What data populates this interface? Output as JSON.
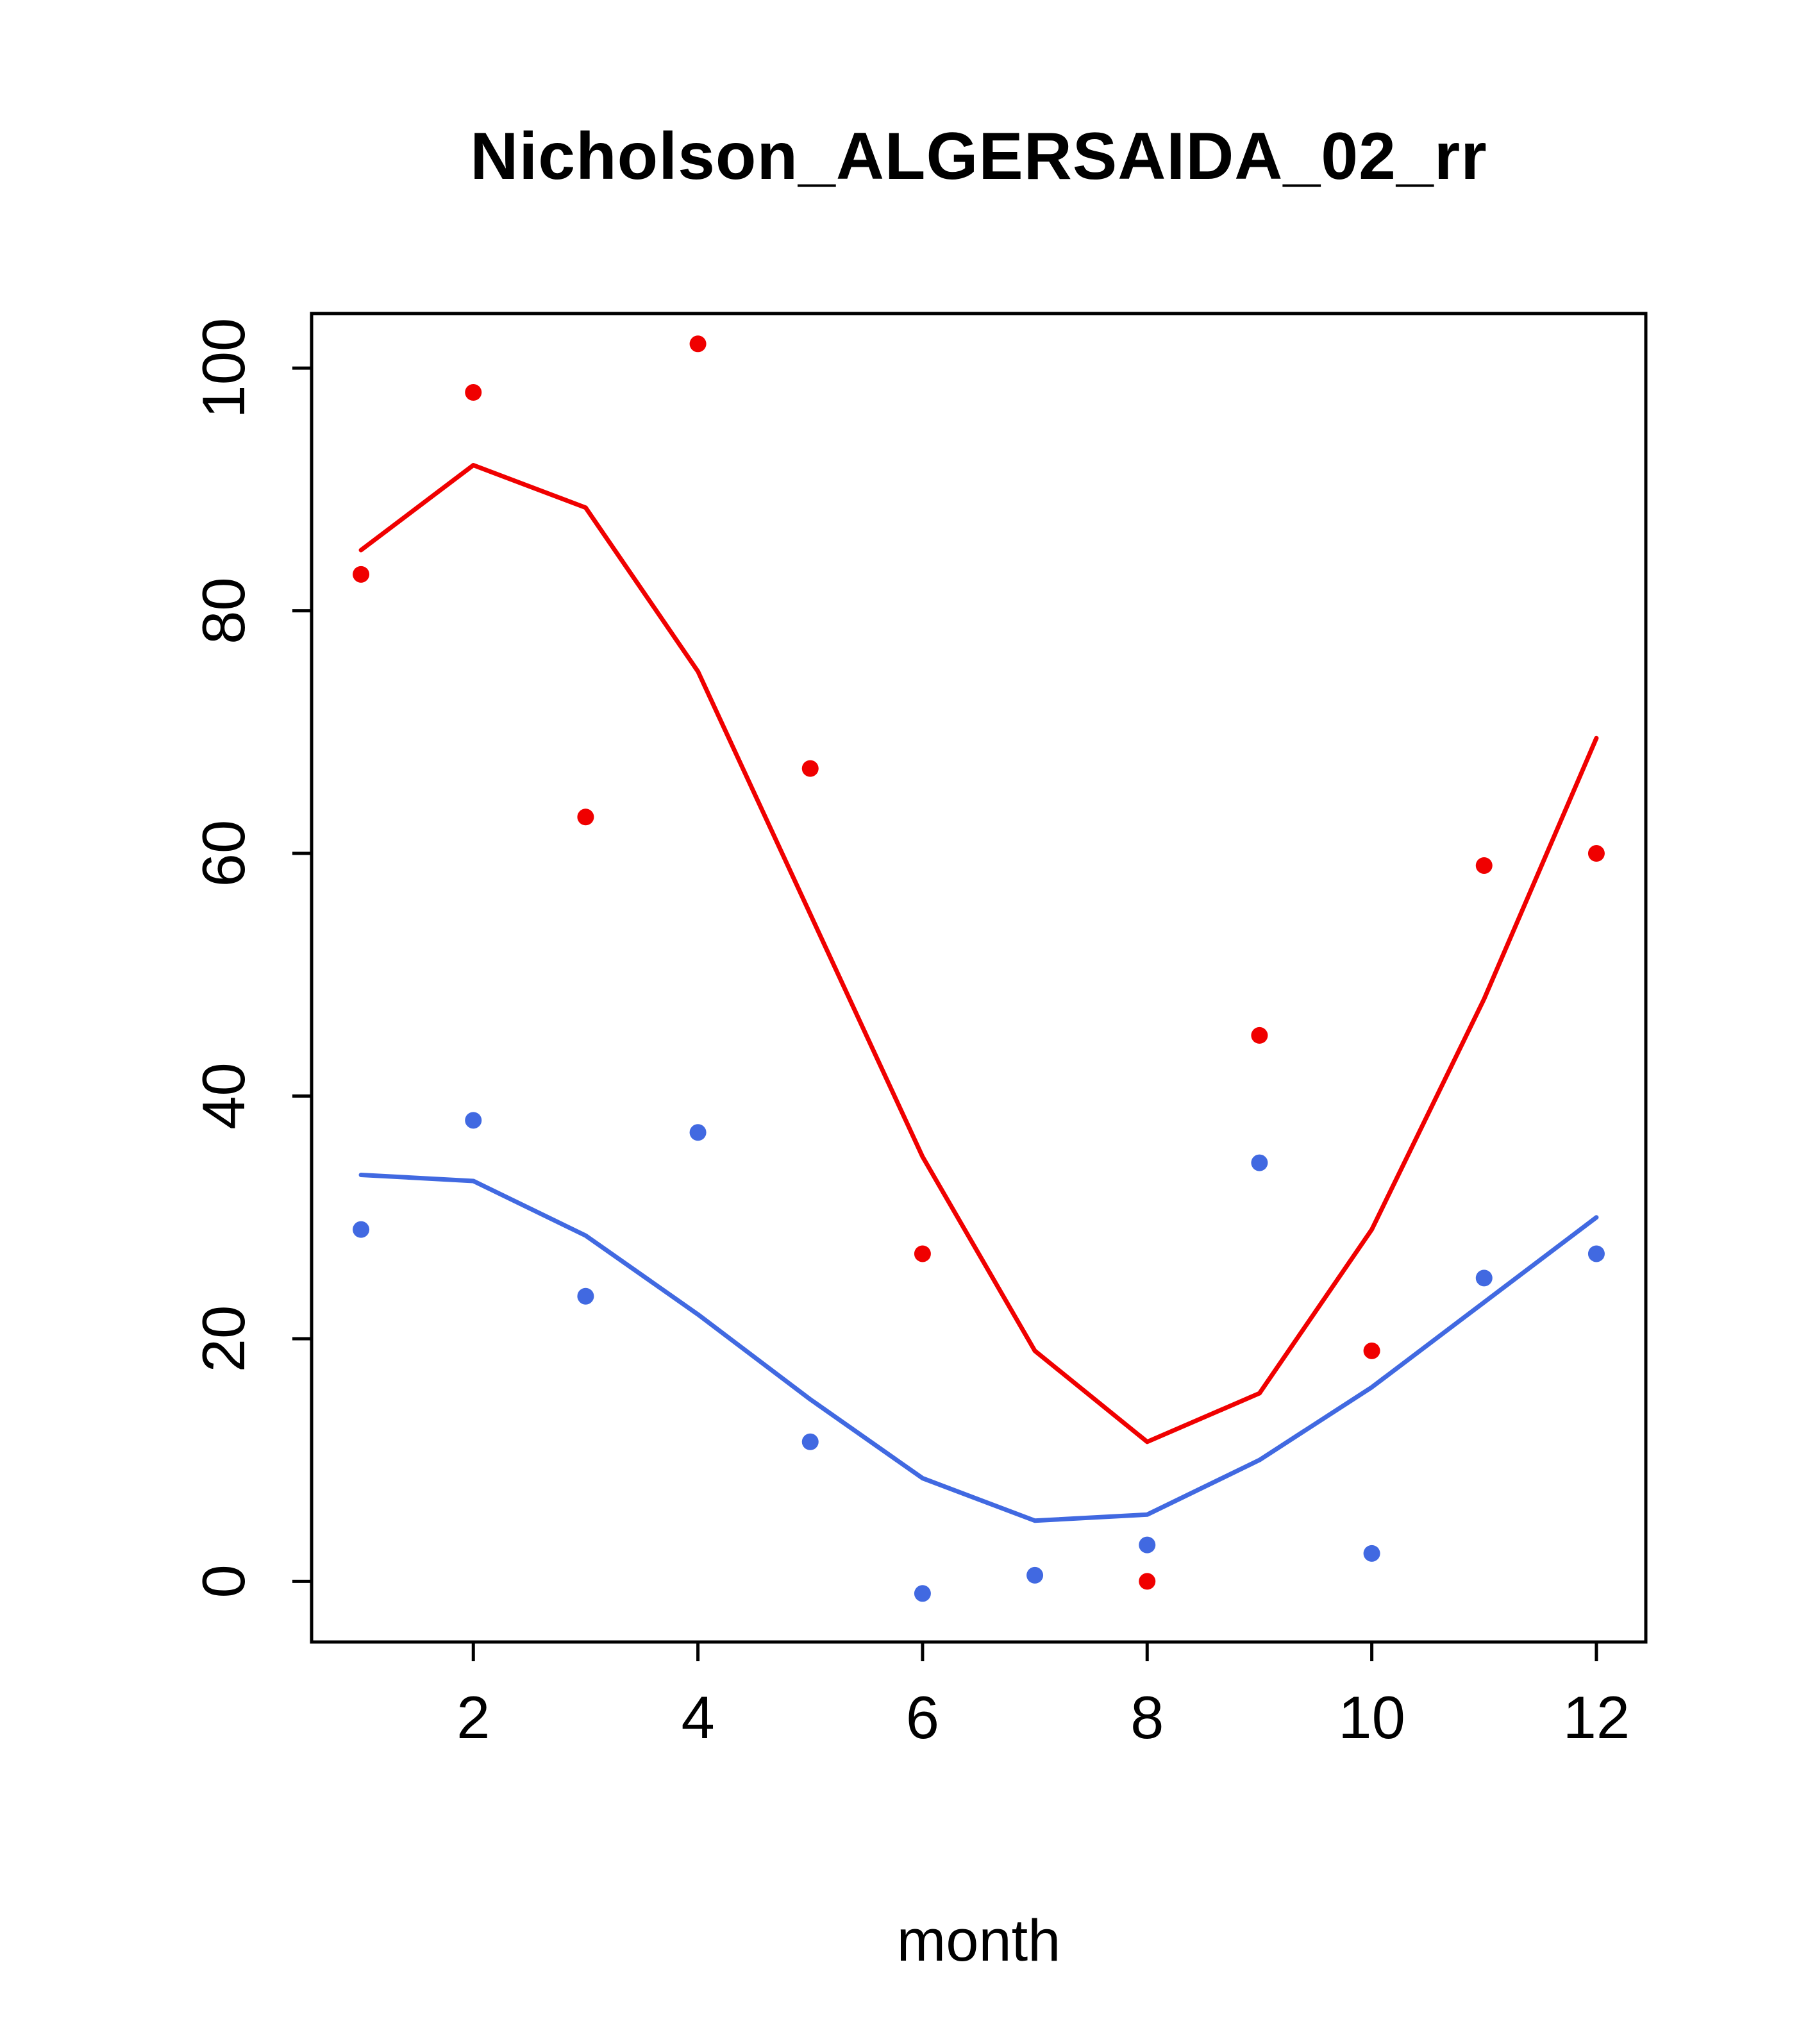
{
  "chart_data": {
    "type": "scatter",
    "title": "Nicholson_ALGERSAIDA_02_rr",
    "xlabel": "month",
    "ylabel": "",
    "xlim": [
      0.56,
      12.44
    ],
    "ylim": [
      -5,
      104.5
    ],
    "x_ticks": [
      2,
      4,
      6,
      8,
      10,
      12
    ],
    "y_ticks": [
      0,
      20,
      40,
      60,
      80,
      100
    ],
    "grid": false,
    "legend_position": "none",
    "series": [
      {
        "name": "red-data-points",
        "kind": "points",
        "color": "#f00000",
        "x": [
          1,
          2,
          3,
          4,
          5,
          6,
          8,
          9,
          10,
          11,
          12
        ],
        "y": [
          83,
          98,
          63,
          102,
          67,
          27,
          0,
          45,
          19,
          59,
          60
        ]
      },
      {
        "name": "red-fit-line",
        "kind": "line",
        "color": "#f00000",
        "x": [
          1,
          2,
          3,
          4,
          5,
          6,
          7,
          8,
          9,
          10,
          11,
          12
        ],
        "y": [
          85,
          92,
          88.5,
          75,
          55,
          35,
          19,
          11.5,
          15.5,
          29,
          48,
          69.5
        ]
      },
      {
        "name": "blue-data-points",
        "kind": "points",
        "color": "#4169e1",
        "x": [
          1,
          2,
          3,
          4,
          5,
          6,
          7,
          8,
          9,
          10,
          11,
          12
        ],
        "y": [
          29,
          38,
          23.5,
          37,
          11.5,
          -1,
          0.5,
          3,
          34.5,
          2.3,
          25,
          27
        ]
      },
      {
        "name": "blue-fit-line",
        "kind": "line",
        "color": "#4169e1",
        "x": [
          1,
          2,
          3,
          4,
          5,
          6,
          7,
          8,
          9,
          10,
          11,
          12
        ],
        "y": [
          33.5,
          33,
          28.5,
          22,
          15,
          8.5,
          5,
          5.5,
          10,
          16,
          23,
          30
        ]
      }
    ]
  }
}
